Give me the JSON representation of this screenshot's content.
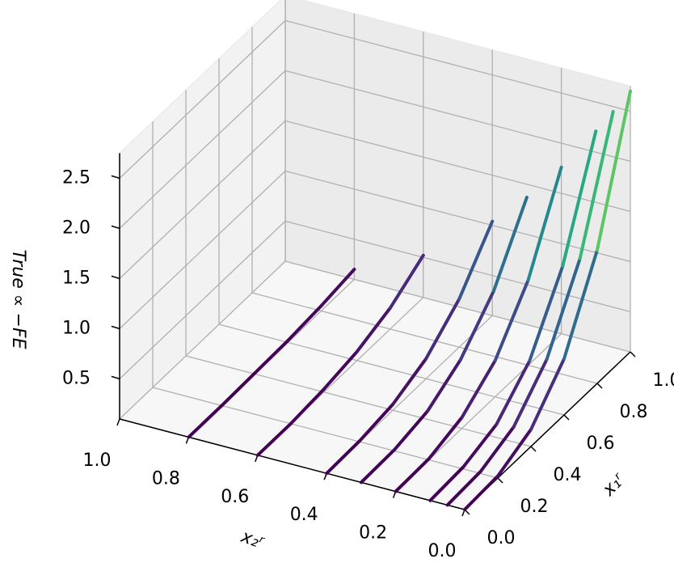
{
  "chart_data": {
    "type": "surface3d",
    "colormap": "viridis",
    "x_label": "x₁ʳ",
    "y_label": "x₂ʳ",
    "z_label": "True ∝ −FE",
    "x": [
      0,
      0.2,
      0.4,
      0.6,
      0.8,
      1.0
    ],
    "series": [
      {
        "y": 0.8,
        "values": [
          0.1,
          0.1,
          0.11,
          0.12,
          0.15,
          0.2
        ]
      },
      {
        "y": 0.6,
        "values": [
          0.1,
          0.1,
          0.13,
          0.19,
          0.31,
          0.52
        ]
      },
      {
        "y": 0.4,
        "values": [
          0.1,
          0.11,
          0.16,
          0.3,
          0.58,
          1.04
        ]
      },
      {
        "y": 0.3,
        "values": [
          0.1,
          0.11,
          0.18,
          0.38,
          0.75,
          1.37
        ]
      },
      {
        "y": 0.2,
        "values": [
          0.1,
          0.11,
          0.21,
          0.46,
          0.95,
          1.76
        ]
      },
      {
        "y": 0.1,
        "values": [
          0.1,
          0.12,
          0.23,
          0.55,
          1.18,
          2.21
        ]
      },
      {
        "y": 0.05,
        "values": [
          0.1,
          0.12,
          0.25,
          0.61,
          1.3,
          2.45
        ]
      },
      {
        "y": 0,
        "values": [
          0.1,
          0.12,
          0.27,
          0.66,
          1.43,
          2.7
        ]
      }
    ],
    "xlim": [
      0,
      1
    ],
    "ylim": [
      0,
      1
    ],
    "zlim": [
      0.1,
      2.75
    ],
    "xticks": [
      {
        "value": 0,
        "label": "0.0"
      },
      0.2,
      0.4,
      0.6,
      0.8,
      {
        "value": 1,
        "label": "1.0"
      }
    ],
    "yticks": [
      {
        "value": 0,
        "label": "0.0"
      },
      0.2,
      0.4,
      0.6,
      0.8,
      {
        "value": 1,
        "label": "1.0"
      }
    ],
    "zticks": [
      0.5,
      {
        "value": 1,
        "label": "1.0"
      },
      1.5,
      {
        "value": 2,
        "label": "2.0"
      },
      2.5
    ],
    "grid": true
  }
}
